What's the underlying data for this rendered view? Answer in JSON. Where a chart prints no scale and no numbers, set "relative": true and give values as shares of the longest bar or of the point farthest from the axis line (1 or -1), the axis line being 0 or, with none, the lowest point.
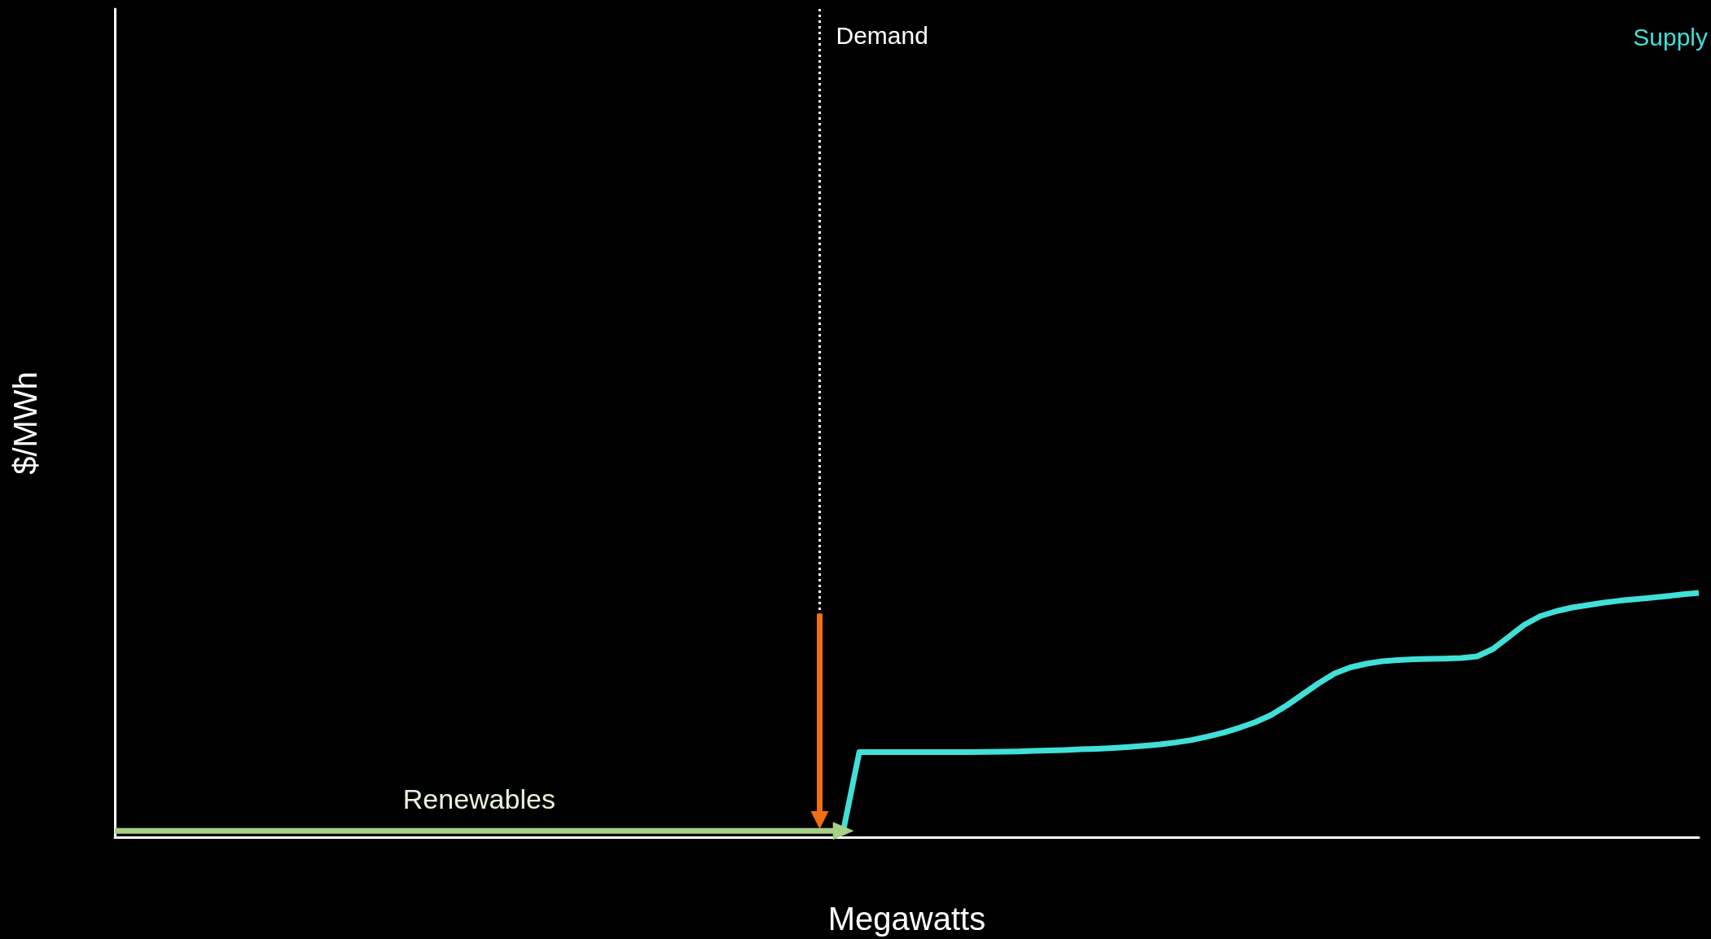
{
  "chart_data": {
    "type": "line",
    "relative": true,
    "xlabel": "Megawatts",
    "ylabel": "$/MWh",
    "grid": false,
    "legend": false,
    "marker": "none",
    "line_style": "solid",
    "categories": [
      null,
      null,
      null,
      null,
      null,
      null,
      null,
      null,
      null,
      null,
      null,
      null,
      null,
      null,
      null,
      null,
      null,
      null,
      null,
      null,
      null,
      null,
      null,
      null,
      null,
      null,
      null,
      null,
      null,
      null,
      null,
      null,
      null,
      null,
      null,
      null,
      null,
      null,
      null,
      null,
      null,
      null,
      null,
      null,
      null,
      null,
      null,
      null,
      null,
      null,
      null,
      null,
      null,
      null,
      null,
      null,
      null,
      null,
      null,
      null,
      null,
      null,
      null,
      null,
      null,
      null,
      null,
      null,
      null,
      null,
      null,
      null,
      null,
      null,
      null,
      null,
      null,
      null,
      null,
      null,
      null,
      null,
      null,
      null,
      null,
      null,
      null,
      null,
      null,
      null,
      null,
      null,
      null,
      null,
      null,
      null,
      null,
      null,
      null,
      null,
      null
    ],
    "series": [
      {
        "name": "Renewables",
        "color": "#a5d086",
        "values": [
          0.026,
          0.026,
          0.026,
          0.026,
          0.026,
          0.026,
          0.026,
          0.026,
          0.026,
          0.026,
          0.026,
          0.026,
          0.026,
          0.026,
          0.026,
          0.026,
          0.026,
          0.026,
          0.026,
          0.026,
          0.026,
          0.026,
          0.026,
          0.026,
          0.026,
          0.026,
          0.026,
          0.026,
          0.026,
          0.026,
          0.026,
          0.026,
          0.026,
          0.026,
          0.026,
          0.026,
          0.026,
          0.026,
          0.026,
          0.026,
          0.026,
          0.026,
          0.026,
          0.026,
          0.026,
          0.026,
          0.026,
          null,
          null,
          null,
          null,
          null,
          null,
          null,
          null,
          null,
          null,
          null,
          null,
          null,
          null,
          null,
          null,
          null,
          null,
          null,
          null,
          null,
          null,
          null,
          null,
          null,
          null,
          null,
          null,
          null,
          null,
          null,
          null,
          null,
          null,
          null,
          null,
          null,
          null,
          null,
          null,
          null,
          null,
          null,
          null,
          null,
          null,
          null,
          null,
          null,
          null,
          null,
          null,
          null,
          null
        ]
      },
      {
        "name": "Supply",
        "color": "#40e0d8",
        "values": [
          null,
          null,
          null,
          null,
          null,
          null,
          null,
          null,
          null,
          null,
          null,
          null,
          null,
          null,
          null,
          null,
          null,
          null,
          null,
          null,
          null,
          null,
          null,
          null,
          null,
          null,
          null,
          null,
          null,
          null,
          null,
          null,
          null,
          null,
          null,
          null,
          null,
          null,
          null,
          null,
          null,
          null,
          null,
          null,
          null,
          null,
          0.03,
          0.348,
          0.348,
          0.348,
          0.348,
          0.348,
          0.348,
          0.348,
          0.348,
          0.349,
          0.35,
          0.351,
          0.353,
          0.355,
          0.357,
          0.36,
          0.362,
          0.365,
          0.369,
          0.374,
          0.38,
          0.388,
          0.398,
          0.412,
          0.428,
          0.448,
          0.471,
          0.5,
          0.54,
          0.585,
          0.63,
          0.67,
          0.695,
          0.71,
          0.72,
          0.725,
          0.728,
          0.73,
          0.731,
          0.733,
          0.74,
          0.77,
          0.82,
          0.87,
          0.905,
          0.925,
          0.94,
          0.95,
          0.96,
          0.968,
          0.974,
          0.98,
          0.987,
          0.994,
          1
        ]
      }
    ],
    "annotations": [
      "Demand"
    ]
  }
}
